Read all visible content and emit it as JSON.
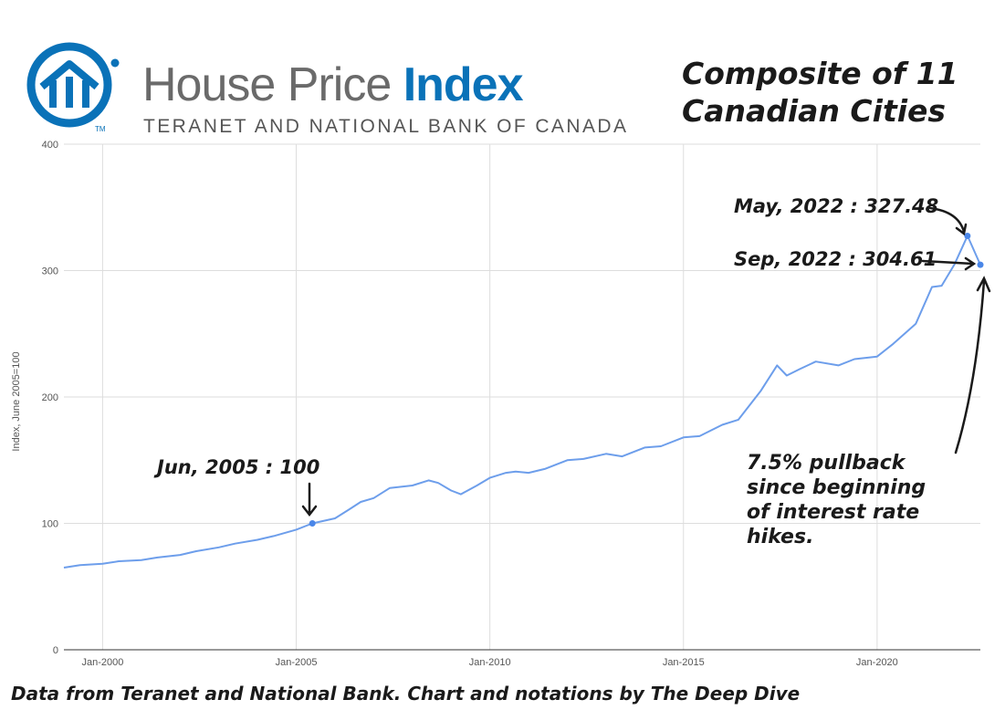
{
  "logo": {
    "title_part1": "House Price ",
    "title_part2": "Index",
    "subtitle": "TERANET AND NATIONAL BANK OF CANADA",
    "tm": "TM",
    "icon": "house-roof-icon"
  },
  "colors": {
    "line": "#6d9eeb",
    "brand_blue": "#0a72b8",
    "grid": "#dddddd"
  },
  "chart_data": {
    "type": "line",
    "title_lines": [
      "Composite of 11",
      "Canadian Cities"
    ],
    "ylabel": "Index, June 2005=100",
    "xlabel": "",
    "ylim": [
      0,
      400
    ],
    "yticks": [
      "0",
      "100",
      "200",
      "300",
      "400"
    ],
    "xticks": [
      {
        "date": "2000-01",
        "label": "Jan-2000"
      },
      {
        "date": "2005-01",
        "label": "Jan-2005"
      },
      {
        "date": "2010-01",
        "label": "Jan-2010"
      },
      {
        "date": "2015-01",
        "label": "Jan-2015"
      },
      {
        "date": "2020-01",
        "label": "Jan-2020"
      }
    ],
    "xrange": [
      "1999-01",
      "2022-09"
    ],
    "grid": true,
    "series": [
      {
        "values": [
          [
            "1999-01",
            65
          ],
          [
            "1999-06",
            67
          ],
          [
            "2000-01",
            68
          ],
          [
            "2000-06",
            70
          ],
          [
            "2001-01",
            71
          ],
          [
            "2001-06",
            73
          ],
          [
            "2002-01",
            75
          ],
          [
            "2002-06",
            78
          ],
          [
            "2003-01",
            81
          ],
          [
            "2003-06",
            84
          ],
          [
            "2004-01",
            87
          ],
          [
            "2004-06",
            90
          ],
          [
            "2005-01",
            95
          ],
          [
            "2005-06",
            100
          ],
          [
            "2006-01",
            104
          ],
          [
            "2006-06",
            112
          ],
          [
            "2006-09",
            117
          ],
          [
            "2007-01",
            120
          ],
          [
            "2007-06",
            128
          ],
          [
            "2008-01",
            130
          ],
          [
            "2008-06",
            134
          ],
          [
            "2008-09",
            132
          ],
          [
            "2009-01",
            126
          ],
          [
            "2009-04",
            123
          ],
          [
            "2009-09",
            130
          ],
          [
            "2010-01",
            136
          ],
          [
            "2010-06",
            140
          ],
          [
            "2010-09",
            141
          ],
          [
            "2011-01",
            140
          ],
          [
            "2011-06",
            143
          ],
          [
            "2012-01",
            150
          ],
          [
            "2012-06",
            151
          ],
          [
            "2013-01",
            155
          ],
          [
            "2013-06",
            153
          ],
          [
            "2014-01",
            160
          ],
          [
            "2014-06",
            161
          ],
          [
            "2015-01",
            168
          ],
          [
            "2015-06",
            169
          ],
          [
            "2016-01",
            178
          ],
          [
            "2016-06",
            182
          ],
          [
            "2017-01",
            205
          ],
          [
            "2017-06",
            225
          ],
          [
            "2017-09",
            217
          ],
          [
            "2018-01",
            222
          ],
          [
            "2018-06",
            228
          ],
          [
            "2019-01",
            225
          ],
          [
            "2019-06",
            230
          ],
          [
            "2020-01",
            232
          ],
          [
            "2020-06",
            242
          ],
          [
            "2021-01",
            258
          ],
          [
            "2021-06",
            287
          ],
          [
            "2021-09",
            288
          ],
          [
            "2022-01",
            305
          ],
          [
            "2022-05",
            327.48
          ],
          [
            "2022-09",
            304.61
          ]
        ]
      }
    ],
    "points": [
      {
        "date": "2005-06",
        "value": 100
      },
      {
        "date": "2022-05",
        "value": 327.48
      },
      {
        "date": "2022-09",
        "value": 304.61
      }
    ],
    "annotations": [
      {
        "text": "Jun, 2005 : 100"
      },
      {
        "text": "May, 2022 : 327.48"
      },
      {
        "text": "Sep, 2022 : 304.61"
      },
      {
        "lines": [
          "7.5% pullback",
          "since beginning",
          "of interest rate",
          "hikes."
        ]
      }
    ]
  },
  "footer": {
    "credit": "Data from Teranet and National Bank. Chart and notations by The Deep Dive"
  }
}
